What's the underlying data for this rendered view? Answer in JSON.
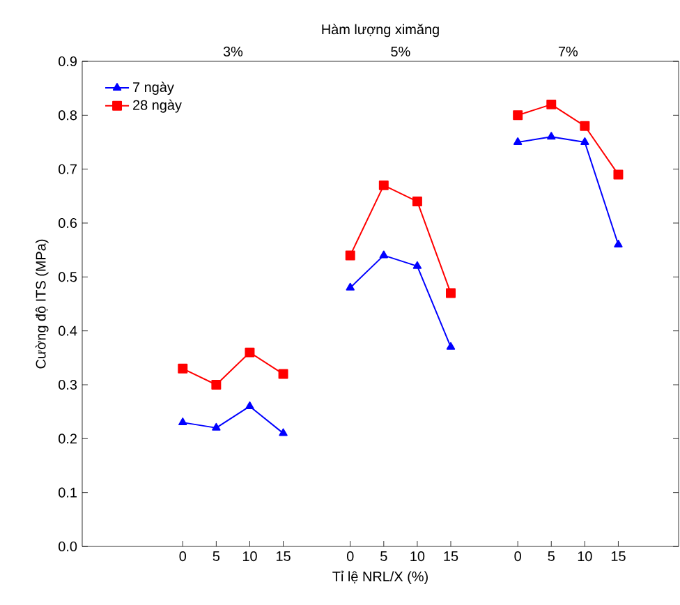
{
  "chart_data": {
    "type": "line",
    "xlabel": "Tỉ lệ NRL/X (%)",
    "ylabel": "Cường độ ITS (MPa)",
    "x2label": "Hàm lượng ximăng",
    "annotations": [
      "3%",
      "5%",
      "7%"
    ],
    "categories": [
      null,
      null,
      "0",
      "5",
      "10",
      "15",
      null,
      "0",
      "5",
      "10",
      "15",
      null,
      "0",
      "5",
      "10",
      "15"
    ],
    "ylim": [
      0,
      0.9
    ],
    "yticks": [
      {
        "value": 0,
        "label": "0.0"
      },
      0.1,
      0.2,
      0.3,
      0.4,
      0.5,
      0.6,
      0.7,
      0.8,
      0.9
    ],
    "series": [
      {
        "name": "7 ngày",
        "color": "#0000ff",
        "marker": "triangle",
        "values": [
          null,
          null,
          0.23,
          0.22,
          0.26,
          0.21,
          null,
          0.48,
          0.54,
          0.52,
          0.37,
          null,
          0.75,
          0.76,
          0.75,
          0.56
        ]
      },
      {
        "name": "28 ngày",
        "color": "#ff0000",
        "marker": "square",
        "values": [
          null,
          null,
          0.33,
          0.3,
          0.36,
          0.32,
          null,
          0.54,
          0.67,
          0.64,
          0.47,
          null,
          0.8,
          0.82,
          0.78,
          0.69
        ]
      }
    ],
    "legend": "top left",
    "line_style": "solid"
  }
}
